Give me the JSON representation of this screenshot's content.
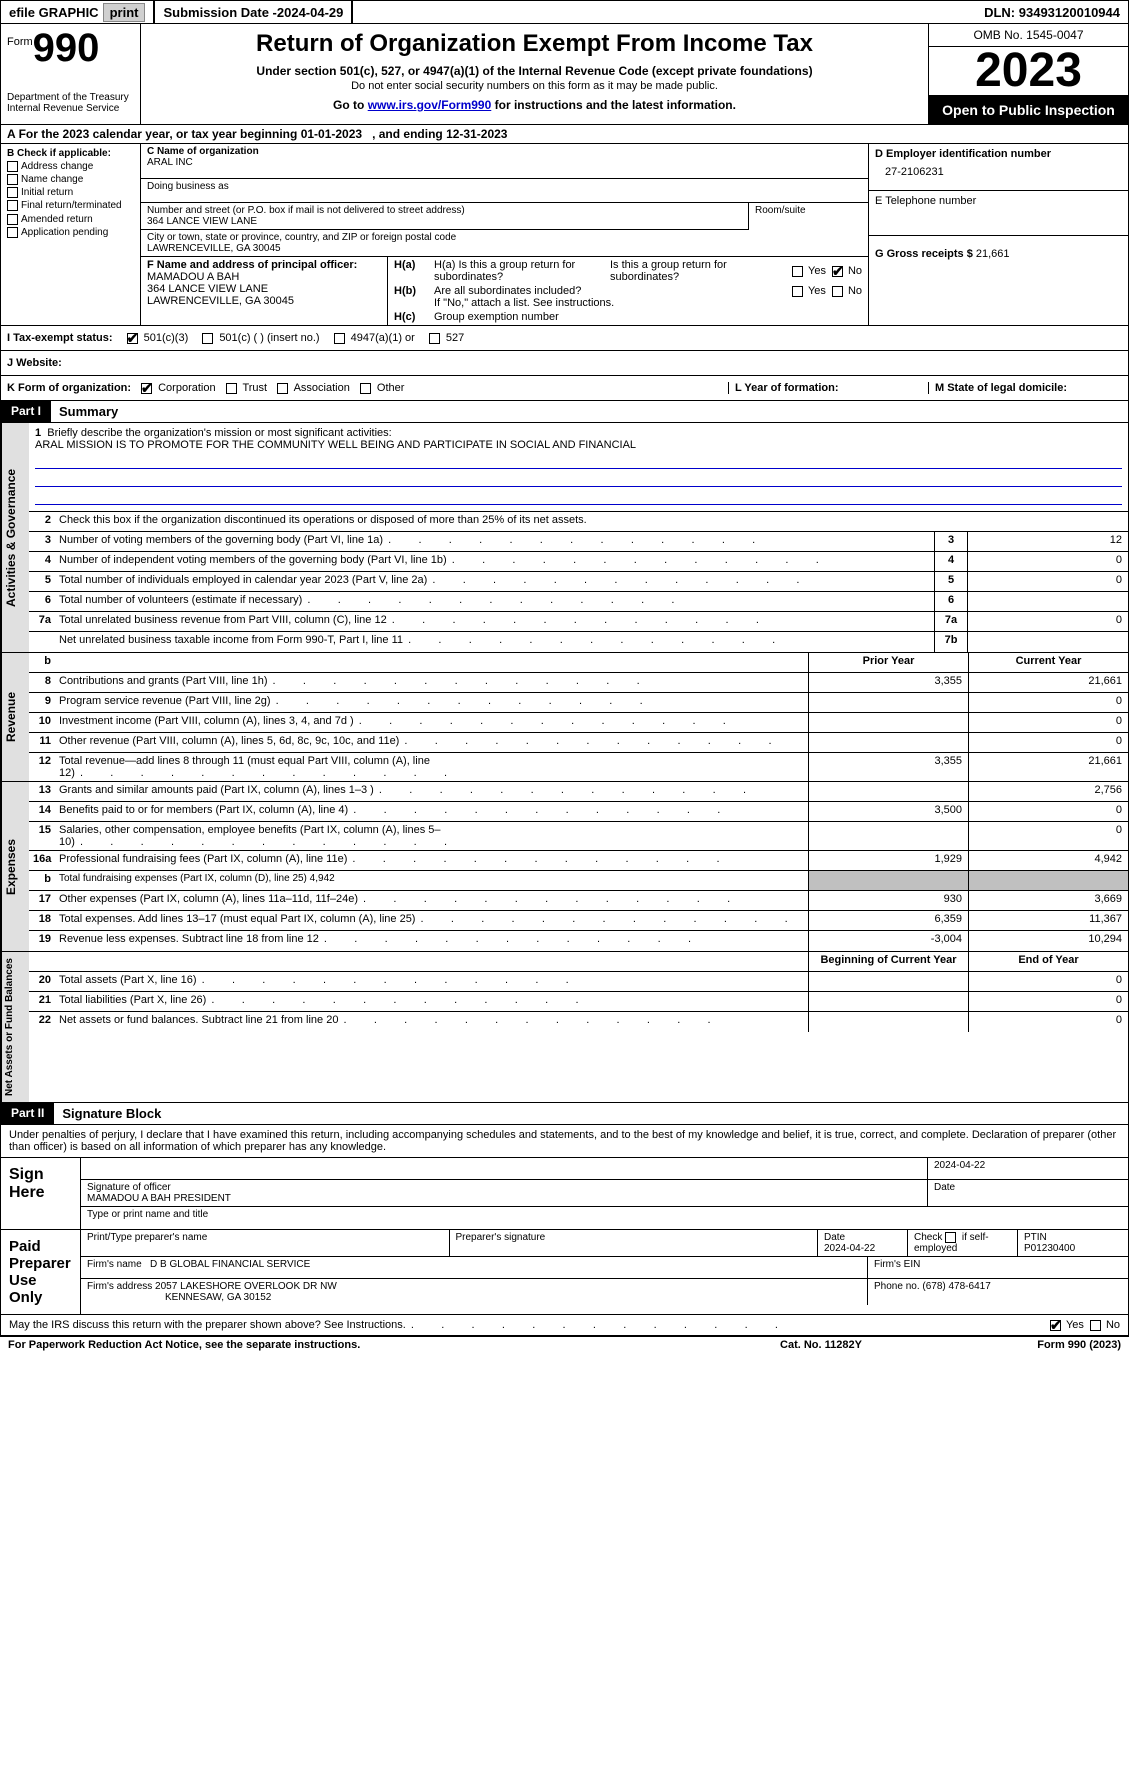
{
  "topbar": {
    "efile": "efile GRAPHIC",
    "print": "print",
    "submission_label": "Submission Date - ",
    "submission_date": "2024-04-29",
    "dln_label": "DLN: ",
    "dln": "93493120010944"
  },
  "header": {
    "form_word": "Form",
    "form_num": "990",
    "dept": "Department of the Treasury\nInternal Revenue Service",
    "title": "Return of Organization Exempt From Income Tax",
    "subtitle": "Under section 501(c), 527, or 4947(a)(1) of the Internal Revenue Code (except private foundations)",
    "note1": "Do not enter social security numbers on this form as it may be made public.",
    "goto_pre": "Go to ",
    "goto_link": "www.irs.gov/Form990",
    "goto_post": " for instructions and the latest information.",
    "omb": "OMB No. 1545-0047",
    "year": "2023",
    "open": "Open to Public Inspection"
  },
  "period": {
    "text_pre": "For the 2023 calendar year, or tax year beginning ",
    "begin": "01-01-2023",
    "mid": "   , and ending ",
    "end": "12-31-2023"
  },
  "boxB": {
    "label": "B Check if applicable:",
    "items": [
      "Address change",
      "Name change",
      "Initial return",
      "Final return/terminated",
      "Amended return",
      "Application pending"
    ]
  },
  "boxC": {
    "name_label": "C Name of organization",
    "name": "ARAL INC",
    "dba_label": "Doing business as",
    "dba": "",
    "addr_label": "Number and street (or P.O. box if mail is not delivered to street address)",
    "addr": "364 LANCE VIEW LANE",
    "room_label": "Room/suite",
    "room": "",
    "city_label": "City or town, state or province, country, and ZIP or foreign postal code",
    "city": "LAWRENCEVILLE, GA   30045",
    "officer_label": "F  Name and address of principal officer:",
    "officer_name": "MAMADOU A BAH",
    "officer_addr1": "364 LANCE VIEW LANE",
    "officer_addr2": "LAWRENCEVILLE, GA   30045"
  },
  "boxD": {
    "ein_label": "D Employer identification number",
    "ein": "27-2106231",
    "tel_label": "E Telephone number",
    "tel": "",
    "gross_label": "G Gross receipts $ ",
    "gross": "21,661"
  },
  "boxH": {
    "a_label": "H(a)  Is this a group return for subordinates?",
    "b_label": "H(b)  Are all subordinates included?",
    "b_note": "If \"No,\" attach a list. See instructions.",
    "c_label": "H(c)  Group exemption number "
  },
  "status": {
    "label": "I   Tax-exempt status:",
    "opt1": "501(c)(3)",
    "opt2": "501(c) (  ) (insert no.)",
    "opt3": "4947(a)(1) or",
    "opt4": "527"
  },
  "website": {
    "label": "J   Website:  "
  },
  "korg": {
    "label": "K Form of organization:",
    "opts": [
      "Corporation",
      "Trust",
      "Association",
      "Other"
    ],
    "year_label": "L Year of formation:",
    "state_label": "M State of legal domicile:"
  },
  "part1": {
    "num": "Part I",
    "title": "Summary"
  },
  "mission": {
    "label": "1   Briefly describe the organization's mission or most significant activities:",
    "text": "ARAL MISSION IS TO PROMOTE FOR THE COMMUNITY WELL BEING AND PARTICIPATE IN SOCIAL AND FINANCIAL"
  },
  "governance": {
    "tab": "Activities & Governance",
    "rows": [
      {
        "n": "2",
        "d": "Check this box      if the organization discontinued its operations or disposed of more than 25% of its net assets."
      },
      {
        "n": "3",
        "d": "Number of voting members of the governing body (Part VI, line 1a)",
        "rn": "3",
        "v": "12"
      },
      {
        "n": "4",
        "d": "Number of independent voting members of the governing body (Part VI, line 1b)",
        "rn": "4",
        "v": "0"
      },
      {
        "n": "5",
        "d": "Total number of individuals employed in calendar year 2023 (Part V, line 2a)",
        "rn": "5",
        "v": "0"
      },
      {
        "n": "6",
        "d": "Total number of volunteers (estimate if necessary)",
        "rn": "6",
        "v": ""
      },
      {
        "n": "7a",
        "d": "Total unrelated business revenue from Part VIII, column (C), line 12",
        "rn": "7a",
        "v": "0"
      },
      {
        "n": "",
        "d": "Net unrelated business taxable income from Form 990-T, Part I, line 11",
        "rn": "7b",
        "v": ""
      }
    ]
  },
  "revenue": {
    "tab": "Revenue",
    "head_b": "b",
    "head_prior": "Prior Year",
    "head_curr": "Current Year",
    "rows": [
      {
        "n": "8",
        "d": "Contributions and grants (Part VIII, line 1h)",
        "p": "3,355",
        "c": "21,661"
      },
      {
        "n": "9",
        "d": "Program service revenue (Part VIII, line 2g)",
        "p": "",
        "c": "0"
      },
      {
        "n": "10",
        "d": "Investment income (Part VIII, column (A), lines 3, 4, and 7d )",
        "p": "",
        "c": "0"
      },
      {
        "n": "11",
        "d": "Other revenue (Part VIII, column (A), lines 5, 6d, 8c, 9c, 10c, and 11e)",
        "p": "",
        "c": "0"
      },
      {
        "n": "12",
        "d": "Total revenue—add lines 8 through 11 (must equal Part VIII, column (A), line 12)",
        "p": "3,355",
        "c": "21,661"
      }
    ]
  },
  "expenses": {
    "tab": "Expenses",
    "rows": [
      {
        "n": "13",
        "d": "Grants and similar amounts paid (Part IX, column (A), lines 1–3 )",
        "p": "",
        "c": "2,756"
      },
      {
        "n": "14",
        "d": "Benefits paid to or for members (Part IX, column (A), line 4)",
        "p": "3,500",
        "c": "0"
      },
      {
        "n": "15",
        "d": "Salaries, other compensation, employee benefits (Part IX, column (A), lines 5–10)",
        "p": "",
        "c": "0"
      },
      {
        "n": "16a",
        "d": "Professional fundraising fees (Part IX, column (A), line 11e)",
        "p": "1,929",
        "c": "4,942"
      },
      {
        "n": "b",
        "d": "Total fundraising expenses (Part IX, column (D), line 25) 4,942",
        "gray": true
      },
      {
        "n": "17",
        "d": "Other expenses (Part IX, column (A), lines 11a–11d, 11f–24e)",
        "p": "930",
        "c": "3,669"
      },
      {
        "n": "18",
        "d": "Total expenses. Add lines 13–17 (must equal Part IX, column (A), line 25)",
        "p": "6,359",
        "c": "11,367"
      },
      {
        "n": "19",
        "d": "Revenue less expenses. Subtract line 18 from line 12",
        "p": "-3,004",
        "c": "10,294"
      }
    ]
  },
  "netassets": {
    "tab": "Net Assets or Fund Balances",
    "head_prior": "Beginning of Current Year",
    "head_curr": "End of Year",
    "rows": [
      {
        "n": "20",
        "d": "Total assets (Part X, line 16)",
        "p": "",
        "c": "0"
      },
      {
        "n": "21",
        "d": "Total liabilities (Part X, line 26)",
        "p": "",
        "c": "0"
      },
      {
        "n": "22",
        "d": "Net assets or fund balances. Subtract line 21 from line 20",
        "p": "",
        "c": "0"
      }
    ]
  },
  "part2": {
    "num": "Part II",
    "title": "Signature Block"
  },
  "sig": {
    "declaration": "Under penalties of perjury, I declare that I have examined this return, including accompanying schedules and statements, and to the best of my knowledge and belief, it is true, correct, and complete. Declaration of preparer (other than officer) is based on all information of which preparer has any knowledge.",
    "sign_here": "Sign Here",
    "date_top": "2024-04-22",
    "officer_sig_label": "Signature of officer",
    "officer_name": "MAMADOU A BAH  PRESIDENT",
    "type_label": "Type or print name and title",
    "date_label": "Date",
    "paid_prep": "Paid Preparer Use Only",
    "prep_name_label": "Print/Type preparer's name",
    "prep_sig_label": "Preparer's signature",
    "prep_date_label": "Date",
    "prep_date": "2024-04-22",
    "self_emp": "Check        if self-employed",
    "ptin_label": "PTIN",
    "ptin": "P01230400",
    "firm_name_label": "Firm's name    ",
    "firm_name": "D B GLOBAL FINANCIAL SERVICE",
    "firm_ein_label": "Firm's EIN  ",
    "firm_addr_label": "Firm's address ",
    "firm_addr1": "2057 LAKESHORE OVERLOOK DR NW",
    "firm_addr2": "KENNESAW, GA   30152",
    "phone_label": "Phone no. ",
    "phone": "(678) 478-6417"
  },
  "discuss": {
    "text": "May the IRS discuss this return with the preparer shown above? See Instructions.",
    "yes": "Yes",
    "no": "No"
  },
  "footer": {
    "paperwork": "For Paperwork Reduction Act Notice, see the separate instructions.",
    "cat": "Cat. No. 11282Y",
    "form": "Form 990 (2023)"
  },
  "labels": {
    "yes": "Yes",
    "no": "No"
  }
}
